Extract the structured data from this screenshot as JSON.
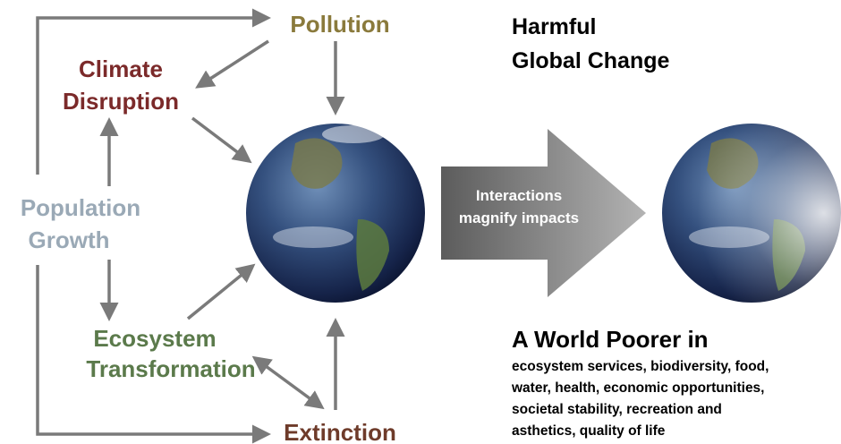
{
  "nodes": [
    {
      "lines": [
        "Pollution"
      ],
      "color": "#8a7a3c"
    },
    {
      "lines": [
        "Climate",
        "Disruption"
      ],
      "color": "#7b2a2a"
    },
    {
      "lines": [
        "Population",
        "Growth"
      ],
      "color": "#9aa9b6"
    },
    {
      "lines": [
        "Ecosystem",
        "Transformation"
      ],
      "color": "#5b7a4b"
    },
    {
      "lines": [
        "Extinction"
      ],
      "color": "#6e3b2a"
    }
  ],
  "heading": [
    "Harmful",
    "Global Change"
  ],
  "arrow_text": [
    "Interactions",
    "magnify impacts"
  ],
  "result": {
    "title": "A World Poorer in",
    "lines": [
      "ecosystem services, biodiversity, food,",
      "water, health, economic opportunities,",
      "societal stability, recreation and",
      "asthetics, quality of life"
    ]
  }
}
